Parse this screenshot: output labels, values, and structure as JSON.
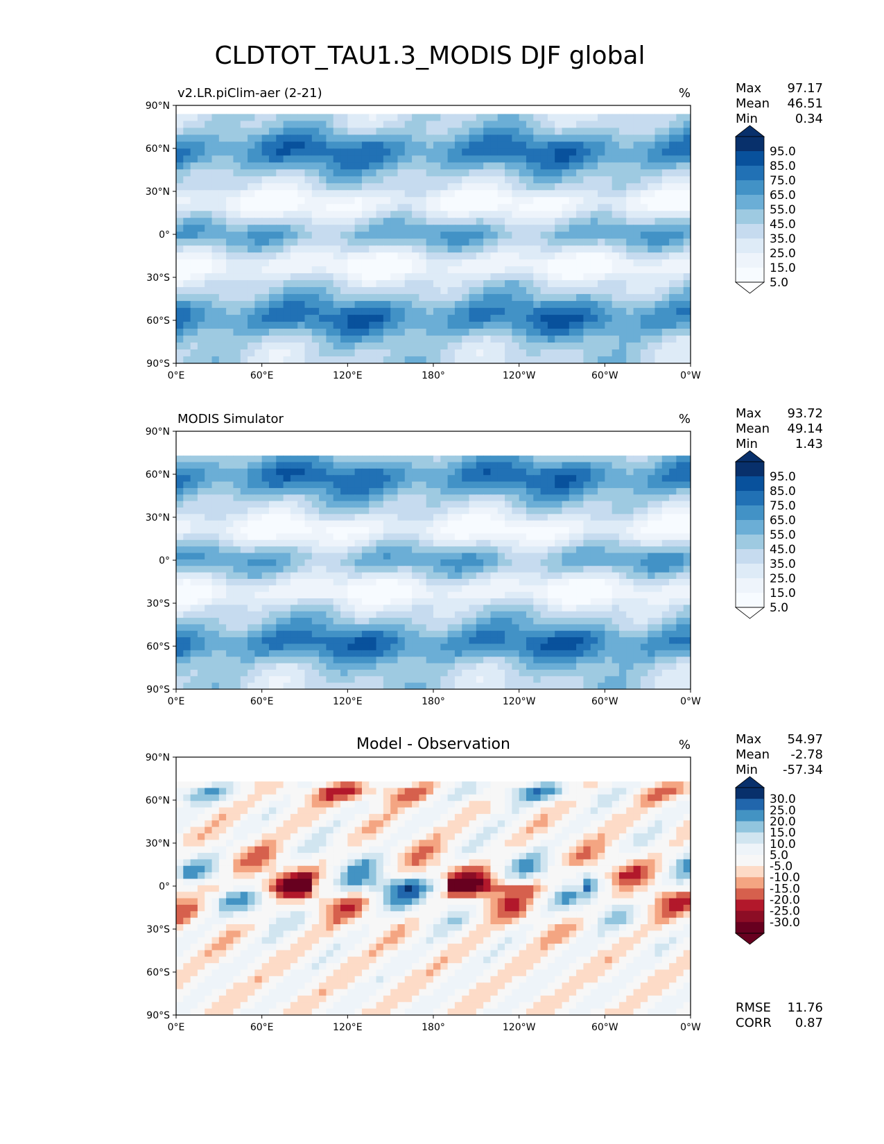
{
  "figure_title": "CLDTOT_TAU1.3_MODIS DJF global",
  "chart_data": [
    {
      "type": "heatmap",
      "title": "v2.LR.piClim-aer (2-21)",
      "units": "%",
      "x_ticks": [
        "0°E",
        "60°E",
        "120°E",
        "180°",
        "120°W",
        "60°W",
        "0°W"
      ],
      "y_ticks": [
        "90°N",
        "60°N",
        "30°N",
        "0°",
        "30°S",
        "60°S",
        "90°S"
      ],
      "xlim": [
        0,
        360
      ],
      "ylim": [
        -90,
        90
      ],
      "data_lat_range": [
        -90,
        84
      ],
      "stats": [
        {
          "label": "Max",
          "value": "97.17"
        },
        {
          "label": "Mean",
          "value": "46.51"
        },
        {
          "label": "Min",
          "value": "0.34"
        }
      ],
      "colorbar": {
        "labels": [
          "95.0",
          "85.0",
          "75.0",
          "65.0",
          "55.0",
          "45.0",
          "35.0",
          "25.0",
          "15.0",
          "5.0"
        ],
        "colors": [
          "#08306b",
          "#08519c",
          "#2171b5",
          "#4292c6",
          "#6baed6",
          "#9ecae1",
          "#c6dbef",
          "#deebf7",
          "#eef4fb",
          "#f7fbff"
        ],
        "over": "#08306b",
        "under": "#ffffff"
      }
    },
    {
      "type": "heatmap",
      "title": "MODIS Simulator",
      "units": "%",
      "x_ticks": [
        "0°E",
        "60°E",
        "120°E",
        "180°",
        "120°W",
        "60°W",
        "0°W"
      ],
      "y_ticks": [
        "90°N",
        "60°N",
        "30°N",
        "0°",
        "30°S",
        "60°S",
        "90°S"
      ],
      "xlim": [
        0,
        360
      ],
      "ylim": [
        -90,
        90
      ],
      "data_lat_range": [
        -90,
        73
      ],
      "stats": [
        {
          "label": "Max",
          "value": "93.72"
        },
        {
          "label": "Mean",
          "value": "49.14"
        },
        {
          "label": "Min",
          "value": "1.43"
        }
      ],
      "colorbar": {
        "labels": [
          "95.0",
          "85.0",
          "75.0",
          "65.0",
          "55.0",
          "45.0",
          "35.0",
          "25.0",
          "15.0",
          "5.0"
        ],
        "colors": [
          "#08306b",
          "#08519c",
          "#2171b5",
          "#4292c6",
          "#6baed6",
          "#9ecae1",
          "#c6dbef",
          "#deebf7",
          "#eef4fb",
          "#f7fbff"
        ],
        "over": "#08306b",
        "under": "#ffffff"
      }
    },
    {
      "type": "heatmap",
      "title": "Model - Observation",
      "units": "%",
      "x_ticks": [
        "0°E",
        "60°E",
        "120°E",
        "180°",
        "120°W",
        "60°W",
        "0°W"
      ],
      "y_ticks": [
        "90°N",
        "60°N",
        "30°N",
        "0°",
        "30°S",
        "60°S",
        "90°S"
      ],
      "xlim": [
        0,
        360
      ],
      "ylim": [
        -90,
        90
      ],
      "data_lat_range": [
        -90,
        73
      ],
      "stats": [
        {
          "label": "Max",
          "value": "54.97"
        },
        {
          "label": "Mean",
          "value": "-2.78"
        },
        {
          "label": "Min",
          "value": "-57.34"
        }
      ],
      "extra_stats": [
        {
          "label": "RMSE",
          "value": "11.76"
        },
        {
          "label": "CORR",
          "value": "0.87"
        }
      ],
      "colorbar": {
        "labels": [
          "30.0",
          "25.0",
          "20.0",
          "15.0",
          "10.0",
          "5.0",
          "-5.0",
          "-10.0",
          "-15.0",
          "-20.0",
          "-25.0",
          "-30.0"
        ],
        "colors": [
          "#08306b",
          "#2166ac",
          "#4393c3",
          "#92c5de",
          "#d1e5f0",
          "#eef4f9",
          "#f7f7f7",
          "#fddbc7",
          "#f4a582",
          "#d6604d",
          "#b2182b",
          "#8c0d25",
          "#67001f"
        ],
        "over": "#08306b",
        "under": "#67001f"
      }
    }
  ]
}
